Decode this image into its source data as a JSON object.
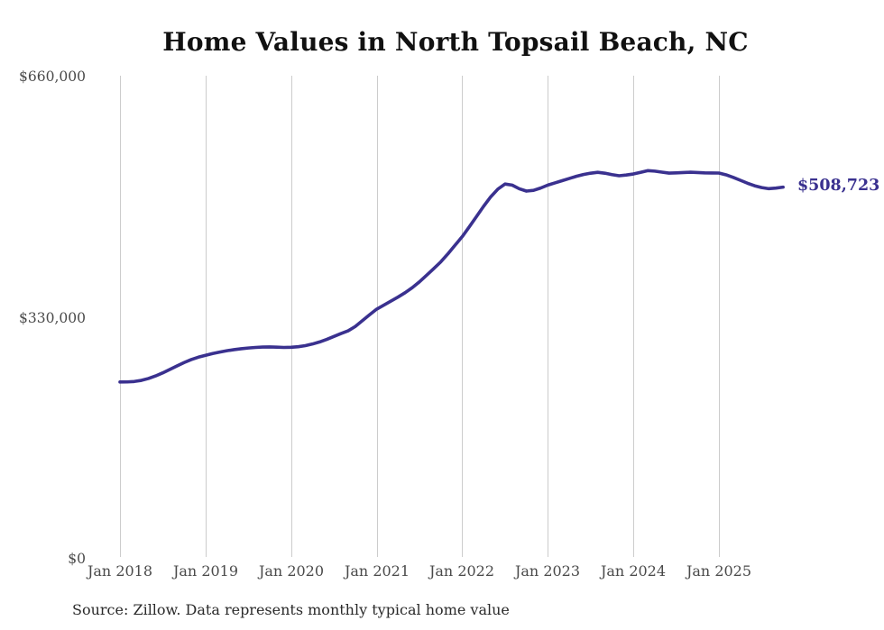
{
  "chart": {
    "title": "Home Values in North Topsail Beach, NC",
    "end_label": "$508,723",
    "source_note": "Source: Zillow. Data represents monthly typical home value"
  },
  "colors": {
    "line": "#3a318f",
    "end_label": "#3a318f",
    "grid": "#cccccc",
    "axis_label": "#4a4a4a",
    "title": "#111111",
    "source": "#2a2a2a"
  },
  "chart_data": {
    "type": "line",
    "title": "Home Values in North Topsail Beach, NC",
    "xlabel": "",
    "ylabel": "",
    "ylim": [
      0,
      660000
    ],
    "y_tick_labels": [
      "$660,000",
      "$330,000",
      "$0"
    ],
    "y_tick_values": [
      660000,
      330000,
      0
    ],
    "x_tick_labels": [
      "Jan 2018",
      "Jan 2019",
      "Jan 2020",
      "Jan 2021",
      "Jan 2022",
      "Jan 2023",
      "Jan 2024",
      "Jan 2025"
    ],
    "grid": "vertical-only",
    "legend": "none",
    "frequency": "monthly",
    "x_start": "Jan 2018",
    "x_end": "Oct 2025",
    "series_name": "Typical home value",
    "end_value": 508723,
    "values": [
      242000,
      242100,
      242700,
      244200,
      246800,
      250300,
      254500,
      259200,
      264000,
      268600,
      272700,
      276000,
      278500,
      281000,
      283000,
      284800,
      286300,
      287500,
      288500,
      289300,
      289800,
      290000,
      289700,
      289300,
      289500,
      290300,
      291800,
      294000,
      296800,
      300300,
      304300,
      308300,
      312000,
      318000,
      326000,
      334000,
      341700,
      347200,
      352700,
      358300,
      364300,
      371200,
      379100,
      388000,
      397200,
      406500,
      417500,
      429300,
      441000,
      454500,
      468500,
      482500,
      495500,
      506000,
      513000,
      511500,
      506500,
      503300,
      504300,
      507500,
      511500,
      514500,
      517500,
      520500,
      523500,
      526000,
      527800,
      529000,
      527800,
      525800,
      524300,
      525300,
      526700,
      529000,
      531300,
      530600,
      529200,
      527900,
      528200,
      528700,
      529100,
      528700,
      528200,
      528100,
      528000,
      525600,
      522100,
      518100,
      514100,
      510600,
      508100,
      506600,
      507400,
      508723
    ]
  }
}
